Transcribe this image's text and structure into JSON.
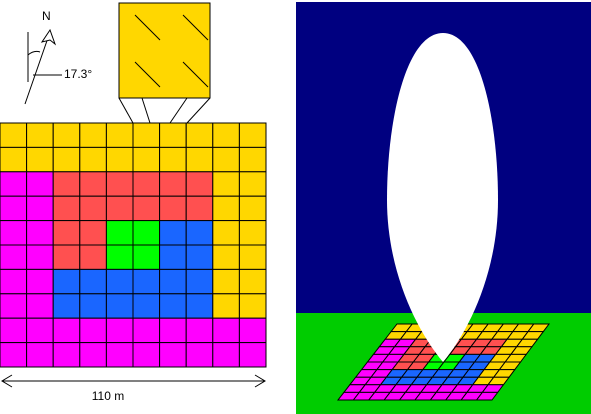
{
  "compass": {
    "north": "N",
    "angle": "17.3°"
  },
  "scale": {
    "label": "110 m"
  }
}
